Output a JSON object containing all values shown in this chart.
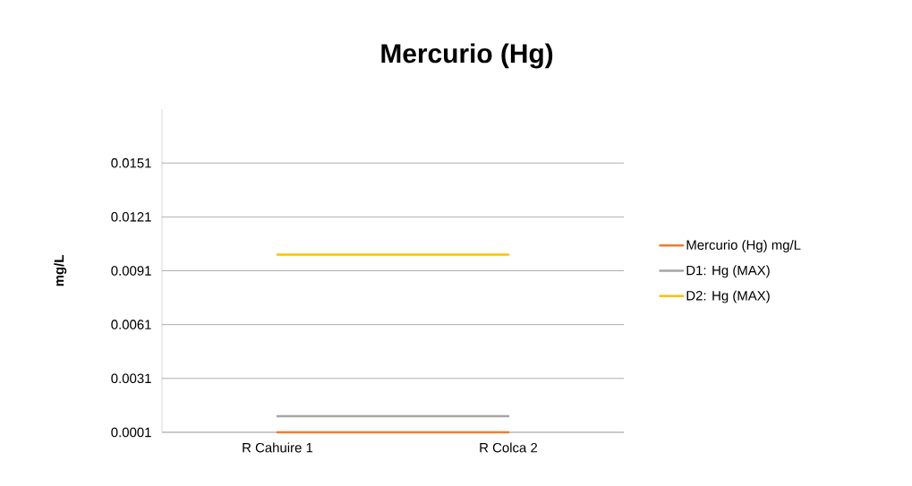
{
  "chart_data": {
    "type": "line",
    "title": "Mercurio (Hg)",
    "ylabel": "mg/L",
    "categories": [
      "R Cahuire 1",
      "R Colca 2"
    ],
    "series": [
      {
        "name": "Mercurio (Hg) mg/L",
        "color": "#ed7d31",
        "values": [
          0.0001,
          0.0001
        ]
      },
      {
        "name": "D1: Hg (MAX)",
        "color": "#a5a5a5",
        "values": [
          0.001,
          0.001
        ]
      },
      {
        "name": "D2: Hg (MAX)",
        "color": "#ffc000",
        "values": [
          0.01,
          0.01
        ]
      }
    ],
    "ylim": [
      0.0001,
      0.0181
    ],
    "yticks": [
      0.0001,
      0.0031,
      0.0061,
      0.0091,
      0.0121,
      0.0151
    ],
    "grid": "y",
    "legend": "right",
    "marker": "none",
    "line_style": "solid"
  }
}
